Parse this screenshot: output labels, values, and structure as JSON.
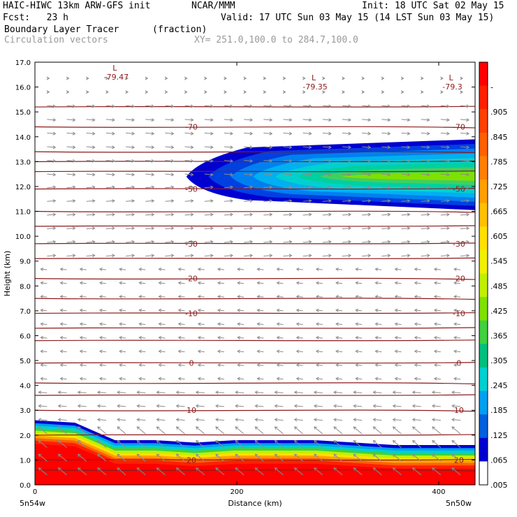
{
  "header": {
    "line1_left": "HAIC-HIWC 13km ARW-GFS init",
    "line1_mid": "NCAR/MMM",
    "line1_right": "Init: 18 UTC Sat 02 May 15",
    "line2_left": "Fcst:   23 h",
    "line2_right": "Valid: 17 UTC Sun 03 May 15 (14 LST Sun 03 May 15)",
    "line3_left": "Boundary Layer Tracer",
    "line3_mid": "(fraction)",
    "line4_left": "Circulation vectors",
    "line4_mid": "XY= 251.0,100.0 to 284.7,100.0"
  },
  "chart_data": {
    "type": "heatmap",
    "title": "Boundary Layer Tracer",
    "units": "(fraction)",
    "xlabel": "Distance (km)",
    "ylabel": "Height (km)",
    "xlim": [
      0,
      436
    ],
    "ylim": [
      0,
      17
    ],
    "x_ticks": [
      "0",
      "200",
      "400"
    ],
    "y_ticks": [
      "0.0",
      "1.0",
      "2.0",
      "3.0",
      "4.0",
      "5.0",
      "6.0",
      "7.0",
      "8.0",
      "9.0",
      "10.0",
      "11.0",
      "12.0",
      "13.0",
      "14.0",
      "15.0",
      "16.0",
      "17.0"
    ],
    "x_endpoint_labels": [
      "5n54w",
      "5n50w"
    ],
    "colorbar_labels": [
      "-",
      ".905",
      ".845",
      ".785",
      ".725",
      ".665",
      ".605",
      ".545",
      ".485",
      ".425",
      ".365",
      ".305",
      ".245",
      ".185",
      ".125",
      ".065",
      ".005"
    ],
    "colorbar_colors": [
      "#ff0000",
      "#ff2000",
      "#ff4000",
      "#ff6000",
      "#ff8000",
      "#ffa000",
      "#ffc000",
      "#ffe000",
      "#f0f000",
      "#c0f000",
      "#80e000",
      "#40d040",
      "#00c080",
      "#00d0d0",
      "#00a0f0",
      "#0060e0",
      "#0000d0",
      "#ffffff"
    ],
    "temperature_contours": [
      {
        "label": "-70",
        "height_km": 14.4
      },
      {
        "label": "-50",
        "height_km": 11.9
      },
      {
        "label": "-30",
        "height_km": 9.7
      },
      {
        "label": "-20",
        "height_km": 8.3
      },
      {
        "label": "-10",
        "height_km": 6.9
      },
      {
        "label": "0",
        "height_km": 4.9
      },
      {
        "label": "10",
        "height_km": 3.0
      },
      {
        "label": "20",
        "height_km": 1.0
      }
    ],
    "extra_contour_heights_km": [
      15.2,
      13.4,
      13.0,
      12.6,
      11.0,
      10.4,
      9.1,
      7.5,
      6.3,
      5.8,
      4.1,
      3.6,
      2.0,
      0.6
    ],
    "lows": [
      {
        "label": "L",
        "value": "-79.47",
        "x_km": 75,
        "height_km": 16.5
      },
      {
        "label": "L",
        "value": "-79.35",
        "x_km": 272,
        "height_km": 16.1
      },
      {
        "label": "L",
        "value": "-79.3",
        "x_km": 408,
        "height_km": 16.1
      }
    ],
    "upper_plume": {
      "x_start_km": 150,
      "bottom_km": 10.9,
      "top_km": 13.9,
      "core_value": 0.365
    },
    "boundary_layer": {
      "value": 1.0,
      "top_km": [
        2.6,
        2.5,
        1.8,
        1.8,
        1.7,
        1.8,
        1.8,
        1.8,
        1.7,
        1.6,
        1.6,
        1.6
      ]
    }
  }
}
